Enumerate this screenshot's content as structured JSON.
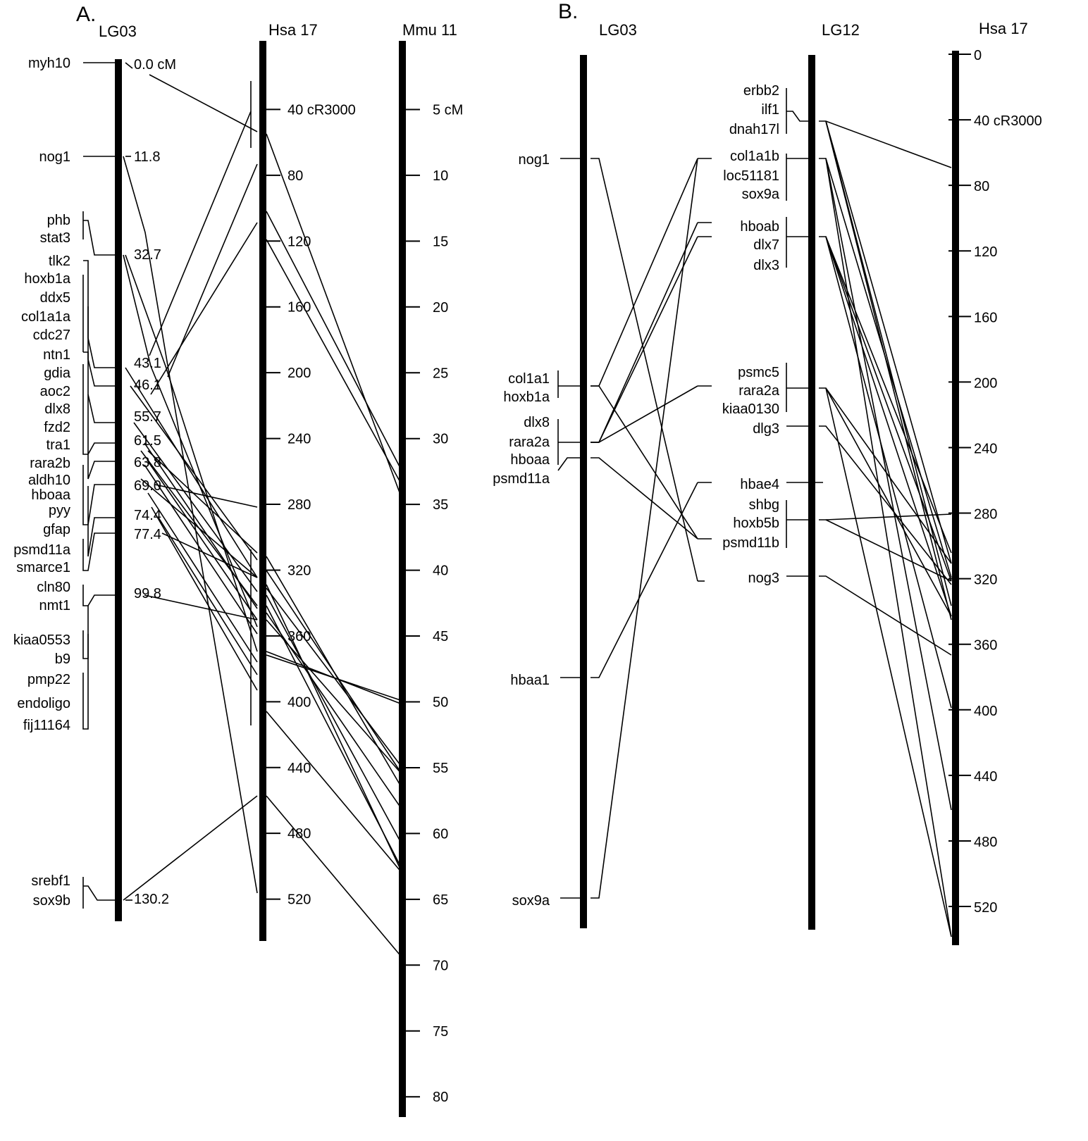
{
  "panel_a": {
    "label": "A.",
    "lg03_title": "LG03",
    "hsa17_title": "Hsa 17",
    "mmu11_title": "Mmu 11",
    "genes": [
      {
        "name": "myh10",
        "pos": "0.0 cM"
      },
      {
        "name": "nog1",
        "pos": "11.8"
      },
      {
        "name": "phb",
        "pos": ""
      },
      {
        "name": "stat3",
        "pos": "32.7"
      },
      {
        "name": "tlk2",
        "pos": ""
      },
      {
        "name": "hoxb1a",
        "pos": ""
      },
      {
        "name": "ddx5",
        "pos": ""
      },
      {
        "name": "col1a1a",
        "pos": ""
      },
      {
        "name": "cdc27",
        "pos": ""
      },
      {
        "name": "ntn1",
        "pos": "43.1"
      },
      {
        "name": "gdia",
        "pos": "46.1"
      },
      {
        "name": "aoc2",
        "pos": ""
      },
      {
        "name": "dlx8",
        "pos": "55.7"
      },
      {
        "name": "fzd2",
        "pos": ""
      },
      {
        "name": "tra1",
        "pos": "61.5"
      },
      {
        "name": "rara2b",
        "pos": "63.8"
      },
      {
        "name": "aldh10",
        "pos": ""
      },
      {
        "name": "hboaa",
        "pos": "69.0"
      },
      {
        "name": "pyy",
        "pos": "74.4"
      },
      {
        "name": "gfap",
        "pos": "77.4"
      },
      {
        "name": "psmd11a",
        "pos": ""
      },
      {
        "name": "smarce1",
        "pos": ""
      },
      {
        "name": "cln80",
        "pos": ""
      },
      {
        "name": "nmt1",
        "pos": "99.8"
      },
      {
        "name": "kiaa0553",
        "pos": ""
      },
      {
        "name": "b9",
        "pos": ""
      },
      {
        "name": "pmp22",
        "pos": ""
      },
      {
        "name": "endoligo",
        "pos": ""
      },
      {
        "name": "fij11164",
        "pos": ""
      },
      {
        "name": "srebf1",
        "pos": ""
      },
      {
        "name": "sox9b",
        "pos": "130.2"
      }
    ],
    "hsa17_ticks": [
      "40 cR3000",
      "80",
      "120",
      "160",
      "200",
      "240",
      "280",
      "320",
      "360",
      "400",
      "440",
      "480",
      "520"
    ],
    "hsa17_tick_values": [
      40,
      80,
      120,
      160,
      200,
      240,
      280,
      320,
      360,
      400,
      440,
      480,
      520
    ],
    "mmu11_ticks": [
      "5 cM",
      "10",
      "15",
      "20",
      "25",
      "30",
      "35",
      "40",
      "45",
      "50",
      "55",
      "60",
      "65",
      "70",
      "75",
      "80"
    ],
    "mmu11_tick_values": [
      5,
      10,
      15,
      20,
      25,
      30,
      35,
      40,
      45,
      50,
      55,
      60,
      65,
      70,
      75,
      80
    ]
  },
  "panel_b": {
    "label": "B.",
    "lg03_title": "LG03",
    "lg12_title": "LG12",
    "hsa17_title": "Hsa 17",
    "lg03_genes": [
      "nog1",
      "col1a1",
      "hoxb1a",
      "dlx8",
      "rara2a",
      "hboaa",
      "psmd11a",
      "hbaa1",
      "sox9a"
    ],
    "lg12_genes": [
      "erbb2",
      "ilf1",
      "dnah17l",
      "col1a1b",
      "loc51181",
      "sox9a",
      "hboab",
      "dlx7",
      "dlx3",
      "psmc5",
      "rara2a",
      "kiaa0130",
      "dlg3",
      "hbae4",
      "shbg",
      "hoxb5b",
      "psmd11b",
      "nog3"
    ],
    "hsa17_ticks": [
      "0",
      "40 cR3000",
      "80",
      "120",
      "160",
      "200",
      "240",
      "280",
      "320",
      "360",
      "400",
      "440",
      "480",
      "520"
    ],
    "hsa17_tick_values": [
      0,
      40,
      80,
      120,
      160,
      200,
      240,
      280,
      320,
      360,
      400,
      440,
      480,
      520
    ]
  }
}
